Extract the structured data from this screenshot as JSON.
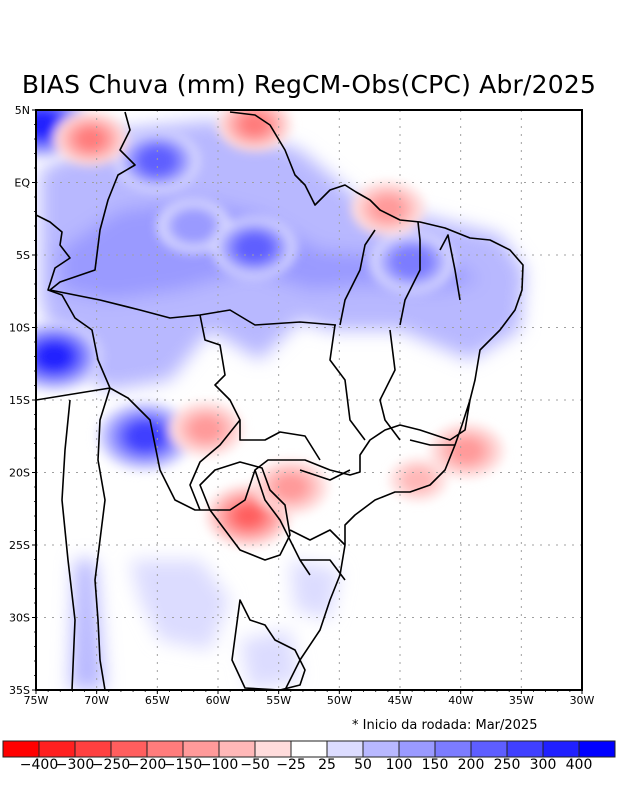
{
  "title": "BIAS Chuva (mm) RegCM-Obs(CPC) Abr/2025",
  "note": "* Inicio da rodada: Mar/2025",
  "axes": {
    "lon_ticks": [
      "75W",
      "70W",
      "65W",
      "60W",
      "55W",
      "50W",
      "45W",
      "40W",
      "35W",
      "30W"
    ],
    "lon_values": [
      -75,
      -70,
      -65,
      -60,
      -55,
      -50,
      -45,
      -40,
      -35,
      -30
    ],
    "lat_ticks": [
      "5N",
      "EQ",
      "5S",
      "10S",
      "15S",
      "20S",
      "25S",
      "30S",
      "35S"
    ],
    "lat_values": [
      5,
      0,
      -5,
      -10,
      -15,
      -20,
      -25,
      -30,
      -35
    ],
    "lon_range": [
      -75,
      -30
    ],
    "lat_range": [
      -35,
      5
    ],
    "grid": true
  },
  "colorbar": {
    "labels": [
      "-400",
      "-300",
      "-250",
      "-200",
      "-150",
      "-100",
      "-50",
      "-25",
      "25",
      "50",
      "100",
      "150",
      "200",
      "250",
      "300",
      "400"
    ],
    "colors": [
      "#ff0000",
      "#ff2020",
      "#ff4040",
      "#ff5e5e",
      "#ff7c7c",
      "#ff9a9a",
      "#ffb8b8",
      "#ffdcdc",
      "#ffffff",
      "#dcdcff",
      "#b8b8ff",
      "#9a9aff",
      "#7c7cff",
      "#5e5eff",
      "#4040ff",
      "#2020ff",
      "#0000ff"
    ]
  },
  "field": {
    "units": "mm",
    "anomalies": [
      {
        "name": "western-amazon-wet",
        "lon": -73.5,
        "lat": -12,
        "value": 400
      },
      {
        "name": "northwest-corner-wet",
        "lon": -74.5,
        "lat": 4,
        "value": 400
      },
      {
        "name": "amazonas-wet",
        "lon": -62,
        "lat": -3,
        "value": 150
      },
      {
        "name": "para-wet",
        "lon": -57,
        "lat": -4.5,
        "value": 250
      },
      {
        "name": "maranhao-piaui-wet",
        "lon": -44,
        "lat": -5.5,
        "value": 200
      },
      {
        "name": "roraima-wet",
        "lon": -65,
        "lat": 1.5,
        "value": 250
      },
      {
        "name": "bolivia-wet",
        "lon": -66,
        "lat": -17.5,
        "value": 300
      },
      {
        "name": "guyana-dry",
        "lon": -57,
        "lat": 4,
        "value": -150
      },
      {
        "name": "colombia-dry",
        "lon": -70.5,
        "lat": 3,
        "value": -150
      },
      {
        "name": "paraguay-dry",
        "lon": -57.5,
        "lat": -23,
        "value": -200
      },
      {
        "name": "mato-grosso-sul-dry",
        "lon": -54,
        "lat": -21,
        "value": -100
      },
      {
        "name": "bolivia-east-dry",
        "lon": -61,
        "lat": -17,
        "value": -100
      },
      {
        "name": "minas-dry",
        "lon": -43.5,
        "lat": -20.5,
        "value": -50
      },
      {
        "name": "espirito-santo-dry",
        "lon": -39.5,
        "lat": -18.5,
        "value": -100
      },
      {
        "name": "amapa-coast-dry",
        "lon": -46,
        "lat": -1.8,
        "value": -100
      }
    ]
  }
}
